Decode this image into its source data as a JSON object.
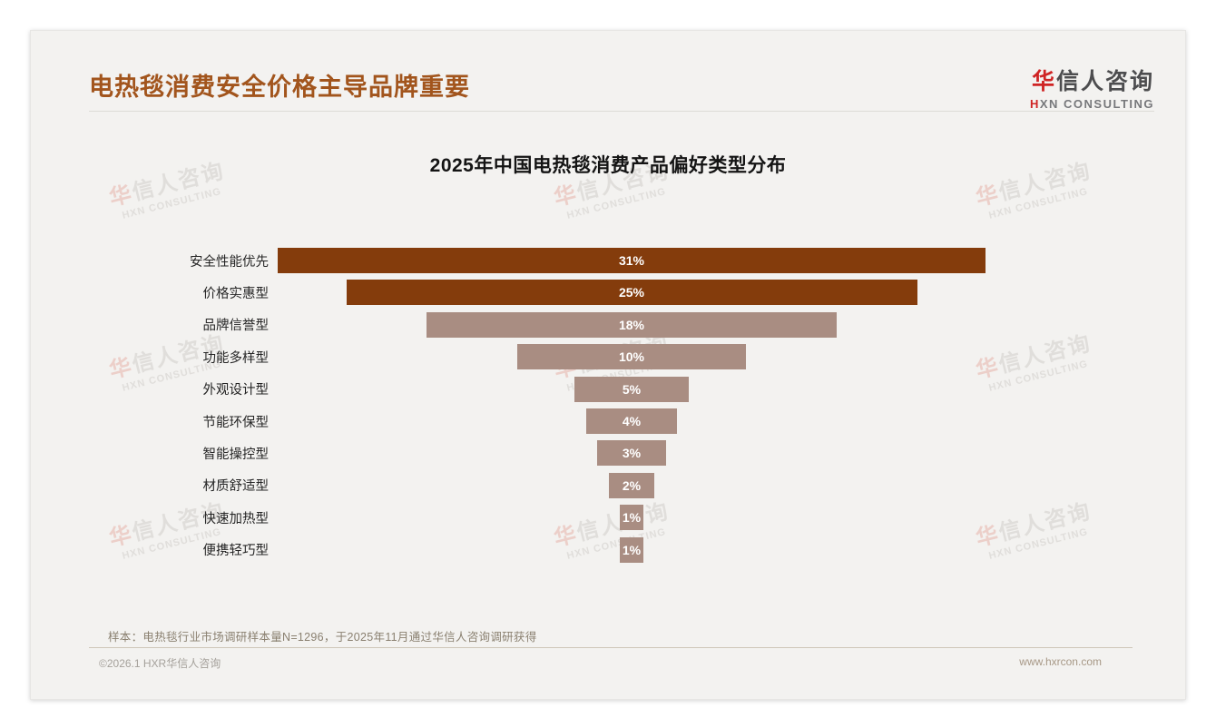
{
  "page": {
    "title": "电热毯消费安全价格主导品牌重要",
    "logo": {
      "zh_first": "华",
      "zh_rest": "信人咨询",
      "en_first": "H",
      "en_rest": "XN CONSULTING"
    },
    "watermark": {
      "line1_first": "华",
      "line1_rest": "信人咨询",
      "line2": "HXN CONSULTING"
    },
    "footer": {
      "note": "样本：电热毯行业市场调研样本量N=1296，于2025年11月通过华信人咨询调研获得",
      "copyright": "©2026.1 HXR华信人咨询",
      "website": "www.hxrcon.com"
    }
  },
  "chart_data": {
    "type": "bar",
    "variant": "centered-funnel-horizontal",
    "title": "2025年中国电热毯消费产品偏好类型分布",
    "categories": [
      "安全性能优先",
      "价格实惠型",
      "品牌信誉型",
      "功能多样型",
      "外观设计型",
      "节能环保型",
      "智能操控型",
      "材质舒适型",
      "快速加热型",
      "便携轻巧型"
    ],
    "values": [
      31,
      25,
      18,
      10,
      5,
      4,
      3,
      2,
      1,
      1
    ],
    "unit": "%",
    "value_labels_inside_bars": true,
    "value_label_color": "#ffffff",
    "xlabel": "",
    "ylabel": "",
    "xlim": [
      0,
      31
    ],
    "grid": false,
    "legend": "none",
    "colors": {
      "primary_bar": "#843c0c",
      "primary_bar_count": 2,
      "secondary_bar": "#a98d82",
      "title_text": "#141414",
      "page_title_text": "#a2551d",
      "logo_accent_red": "#cf2424",
      "note_text": "#8a8070"
    }
  }
}
